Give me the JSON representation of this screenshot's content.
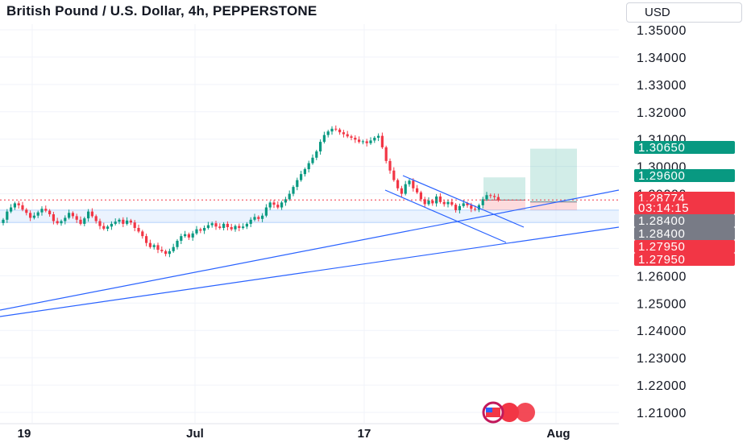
{
  "header": {
    "title": "British Pound / U.S. Dollar, 4h, PEPPERSTONE",
    "currency": "USD"
  },
  "chart_data": {
    "type": "candlestick",
    "title": "British Pound / U.S. Dollar, 4h, PEPPERSTONE",
    "ylim": [
      1.207,
      1.357
    ],
    "y_ticks": [
      "1.35000",
      "1.34000",
      "1.33000",
      "1.32000",
      "1.31000",
      "1.30000",
      "1.29000",
      "1.28000",
      "1.27000",
      "1.26000",
      "1.25000",
      "1.24000",
      "1.23000",
      "1.22000",
      "1.21000"
    ],
    "x_ticks": [
      "19",
      "Jul",
      "17",
      "Aug"
    ],
    "close_series": [
      1.2805,
      1.2835,
      1.285,
      1.2865,
      1.2858,
      1.2842,
      1.283,
      1.2812,
      1.282,
      1.2832,
      1.2845,
      1.2838,
      1.2825,
      1.28,
      1.2792,
      1.28,
      1.2812,
      1.283,
      1.2818,
      1.2805,
      1.279,
      1.281,
      1.2835,
      1.2818,
      1.28,
      1.2782,
      1.2772,
      1.278,
      1.279,
      1.2798,
      1.2805,
      1.279,
      1.2802,
      1.2795,
      1.2775,
      1.2762,
      1.2745,
      1.272,
      1.2705,
      1.2712,
      1.2695,
      1.269,
      1.268,
      1.269,
      1.2705,
      1.2728,
      1.2745,
      1.2752,
      1.274,
      1.2755,
      1.277,
      1.2765,
      1.2775,
      1.2785,
      1.2792,
      1.278,
      1.2775,
      1.279,
      1.2778,
      1.277,
      1.2782,
      1.2775,
      1.278,
      1.279,
      1.2805,
      1.2815,
      1.2808,
      1.282,
      1.285,
      1.2868,
      1.286,
      1.285,
      1.2868,
      1.288,
      1.29,
      1.2925,
      1.295,
      1.2972,
      1.299,
      1.3012,
      1.3032,
      1.3055,
      1.309,
      1.3115,
      1.3128,
      1.3138,
      1.3135,
      1.3125,
      1.3118,
      1.311,
      1.3105,
      1.3098,
      1.309,
      1.3092,
      1.3085,
      1.3095,
      1.3105,
      1.3112,
      1.307,
      1.302,
      1.2985,
      1.295,
      1.292,
      1.29,
      1.2935,
      1.2948,
      1.292,
      1.2905,
      1.288,
      1.2862,
      1.2875,
      1.2865,
      1.289,
      1.287,
      1.2862,
      1.287,
      1.286,
      1.284,
      1.2855,
      1.2865,
      1.2858,
      1.2845,
      1.2842,
      1.2858,
      1.288,
      1.2895,
      1.2892,
      1.2888,
      1.2877
    ],
    "last_price": "1.28774",
    "countdown": "03:14:15",
    "price_tags": [
      {
        "label": "1.30650",
        "color": "#089981"
      },
      {
        "label": "1.29600",
        "color": "#089981"
      },
      {
        "label": "1.28774",
        "color": "#f23645"
      },
      {
        "label": "03:14:15",
        "color": "#f23645"
      },
      {
        "label": "1.28400",
        "color": "#787b86"
      },
      {
        "label": "1.28400",
        "color": "#787b86"
      },
      {
        "label": "1.27950",
        "color": "#f23645"
      },
      {
        "label": "1.27950",
        "color": "#f23645"
      }
    ],
    "colors": {
      "up": "#089981",
      "down": "#f23645",
      "trendline": "#2962ff",
      "zone": "#dbeafe"
    }
  }
}
